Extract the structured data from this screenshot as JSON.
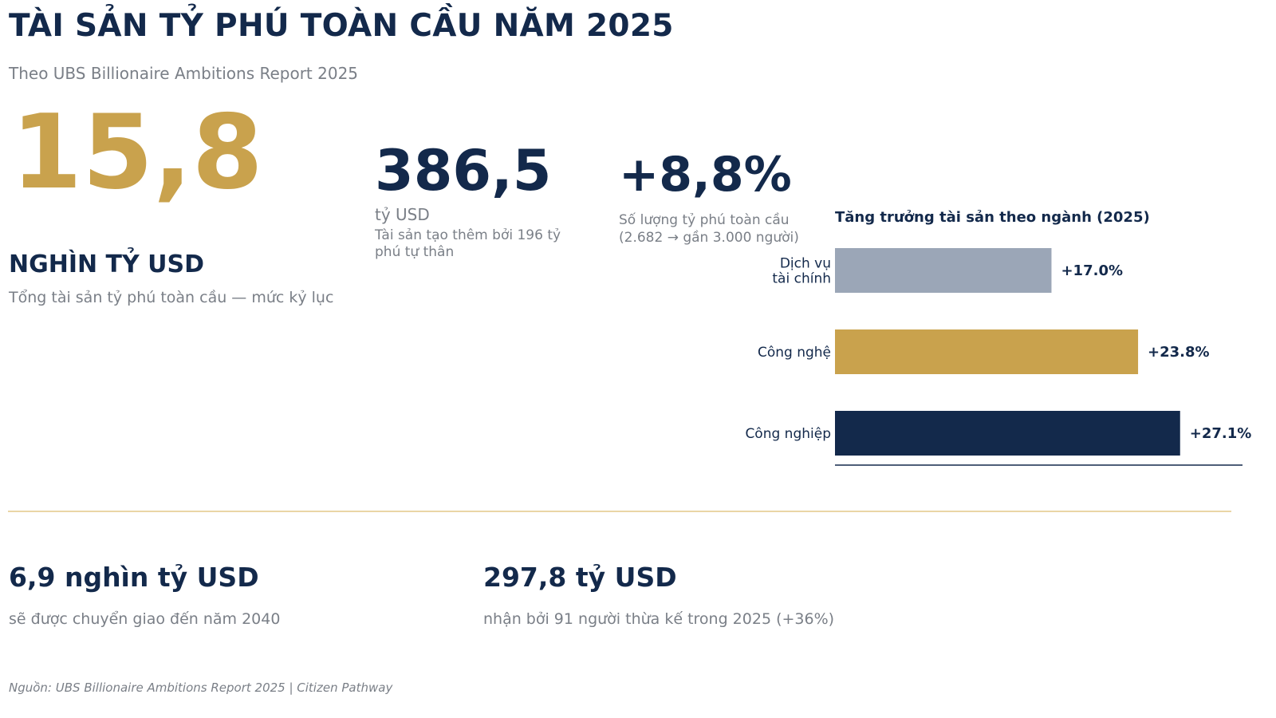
{
  "header": {
    "title": "TÀI SẢN TỶ PHÚ TOÀN CẦU NĂM 2025",
    "subtitle": "Theo UBS Billionaire Ambitions Report 2025"
  },
  "hero": {
    "value": "15,8",
    "unit": "NGHÌN TỶ USD",
    "description": "Tổng tài sản tỷ phú toàn cầu — mức kỷ lục"
  },
  "stat_new_wealth": {
    "value": "386,5",
    "unit": "tỷ USD",
    "description": "Tài sản tạo thêm bởi 196 tỷ phú tự thân"
  },
  "stat_count_growth": {
    "value": "+8,8%",
    "description": "Số lượng tỷ phú toàn cầu (2.682 → gần 3.000 người)"
  },
  "stat_transfer": {
    "value": "6,9 nghìn tỷ USD",
    "description": "sẽ được chuyển giao đến năm 2040"
  },
  "stat_inherited": {
    "value": "297,8 tỷ USD",
    "description": "nhận bởi 91 người thừa kế trong 2025 (+36%)"
  },
  "footer": {
    "source": "Nguồn: UBS Billionaire Ambitions Report 2025  |  Citizen Pathway"
  },
  "chart_data": {
    "type": "bar",
    "orientation": "horizontal",
    "title": "Tăng trưởng tài sản theo ngành (2025)",
    "xlabel": "",
    "ylabel": "",
    "categories": [
      [
        "Dịch vụ",
        "tài chính"
      ],
      [
        "Công nghệ"
      ],
      [
        "Công nghiệp"
      ]
    ],
    "values": [
      17.0,
      23.8,
      27.1
    ],
    "value_labels": [
      "+17.0%",
      "+23.8%",
      "+27.1%"
    ],
    "colors": [
      "#9ba6b7",
      "#c9a24d",
      "#13294b"
    ],
    "xlim": [
      0,
      32
    ],
    "grid": false,
    "legend": "none"
  }
}
